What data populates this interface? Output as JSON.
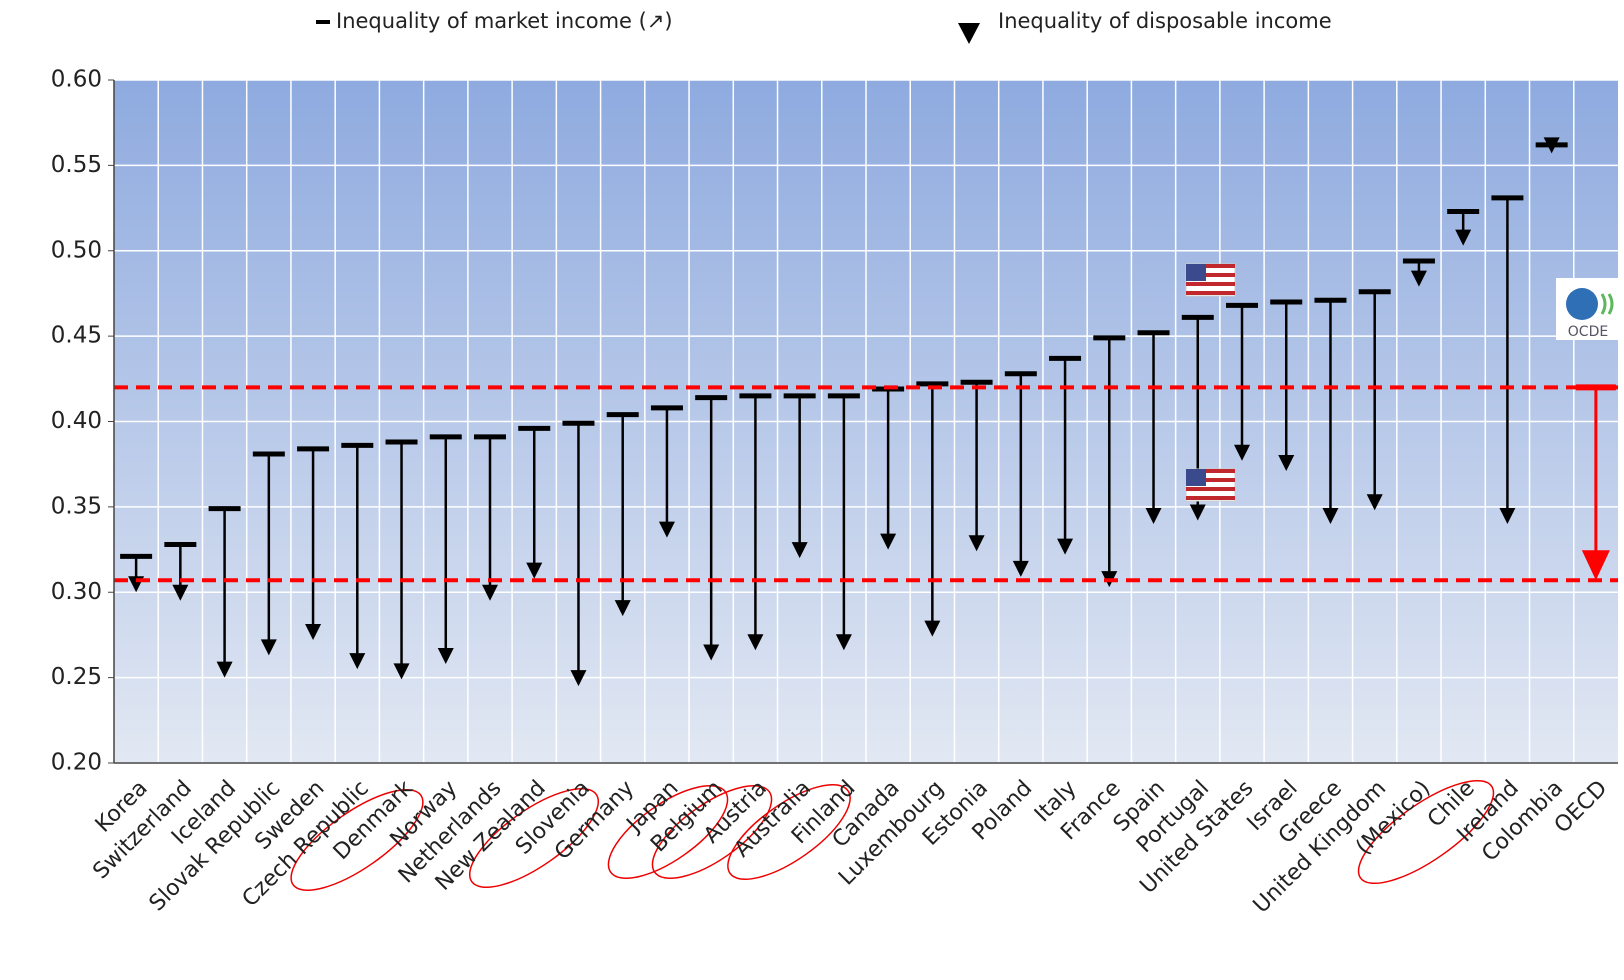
{
  "chart_data": {
    "type": "dumbbell-arrow",
    "categories": [
      "Korea",
      "Switzerland",
      "Iceland",
      "Slovak Republic",
      "Sweden",
      "Czech Republic",
      "Denmark",
      "Norway",
      "Netherlands",
      "New Zealand",
      "Slovenia",
      "Germany",
      "Japan",
      "Belgium",
      "Austria",
      "Australia",
      "Finland",
      "Canada",
      "Luxembourg",
      "Estonia",
      "Poland",
      "Italy",
      "France",
      "Spain",
      "Portugal",
      "United States",
      "Israel",
      "Greece",
      "United Kingdom",
      "(Mexico)",
      "Chile",
      "Ireland",
      "Colombia",
      "OECD"
    ],
    "series": [
      {
        "name": "Inequality of market income (↗)",
        "color": "#000000",
        "values": [
          0.321,
          0.328,
          0.349,
          0.381,
          0.384,
          0.386,
          0.388,
          0.391,
          0.391,
          0.396,
          0.399,
          0.404,
          0.408,
          0.414,
          0.415,
          0.415,
          0.415,
          0.419,
          0.422,
          0.423,
          0.428,
          0.437,
          0.449,
          0.452,
          0.461,
          0.468,
          0.47,
          0.471,
          0.476,
          0.494,
          0.523,
          0.531,
          0.562,
          0.42
        ]
      },
      {
        "name": "Inequality of disposable income",
        "color": "#000000",
        "values": [
          0.3,
          0.295,
          0.25,
          0.263,
          0.272,
          0.255,
          0.249,
          0.258,
          0.295,
          0.308,
          0.245,
          0.286,
          0.332,
          0.26,
          0.266,
          0.32,
          0.266,
          0.325,
          0.274,
          0.324,
          0.309,
          0.322,
          0.303,
          0.34,
          0.342,
          0.377,
          0.371,
          0.34,
          0.348,
          0.479,
          0.503,
          0.34,
          0.557,
          0.307
        ]
      }
    ],
    "highlight_color": "#ff0000",
    "logo_text": "OCDE",
    "ylim": [
      0.2,
      0.6
    ],
    "yticks": [
      {
        "value": 0.2,
        "label": "0.20"
      },
      {
        "value": 0.25,
        "label": "0.25"
      },
      {
        "value": 0.3,
        "label": "0.30"
      },
      {
        "value": 0.35,
        "label": "0.35"
      },
      {
        "value": 0.4,
        "label": "0.40"
      },
      {
        "value": 0.45,
        "label": "0.45"
      },
      {
        "value": 0.5,
        "label": "0.50"
      },
      {
        "value": 0.55,
        "label": "0.55"
      },
      {
        "value": 0.6,
        "label": "0.60"
      }
    ],
    "grid": true
  }
}
